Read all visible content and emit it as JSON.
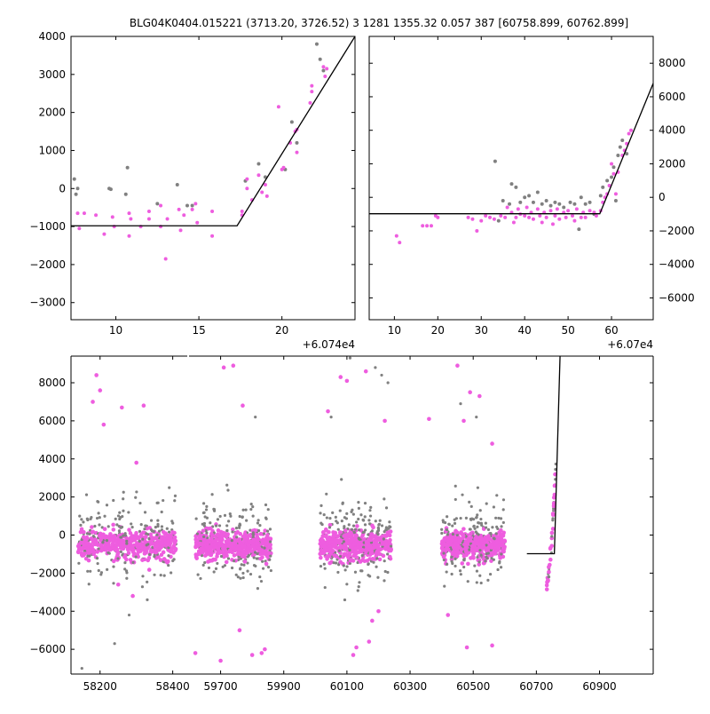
{
  "figure": {
    "title": "BLG04K0404.015221 (3713.20, 3726.52)   3 1281 1355.32 0.057 387 [60758.899, 60762.899]"
  },
  "colors": {
    "pink": "#ee5ddf",
    "grey": "#808080",
    "model": "#000000",
    "axes": "#000000",
    "background": "#ffffff"
  },
  "chart_data": [
    {
      "id": "zoom-left",
      "type": "scatter",
      "xlim": [
        7.3,
        24.4
      ],
      "ylim": [
        -3450,
        4000
      ],
      "xticks": [
        10,
        15,
        20
      ],
      "yticks": [
        -3000,
        -2000,
        -1000,
        0,
        1000,
        2000,
        3000,
        4000
      ],
      "y_axis_side": "left",
      "offset_text": "+6.074e4",
      "grid": false,
      "series": [
        {
          "color": "grey",
          "points": [
            [
              7.5,
              250
            ],
            [
              7.6,
              -150
            ],
            [
              7.7,
              0
            ],
            [
              9.6,
              0
            ],
            [
              9.7,
              -20
            ],
            [
              10.6,
              -150
            ],
            [
              10.7,
              550
            ],
            [
              12.5,
              -400
            ],
            [
              13.7,
              100
            ],
            [
              14.3,
              -450
            ],
            [
              14.6,
              -450
            ],
            [
              17.8,
              200
            ],
            [
              18.6,
              650
            ],
            [
              19.0,
              300
            ],
            [
              20.2,
              500
            ],
            [
              20.6,
              1750
            ],
            [
              20.9,
              1200
            ],
            [
              22.1,
              3800
            ],
            [
              22.3,
              3400
            ],
            [
              22.5,
              3100
            ]
          ]
        },
        {
          "color": "pink",
          "points": [
            [
              7.7,
              -650
            ],
            [
              7.8,
              -1050
            ],
            [
              8.1,
              -650
            ],
            [
              8.8,
              -700
            ],
            [
              9.3,
              -1200
            ],
            [
              9.8,
              -750
            ],
            [
              9.9,
              -1000
            ],
            [
              10.8,
              -1250
            ],
            [
              10.8,
              -650
            ],
            [
              10.9,
              -800
            ],
            [
              11.5,
              -1000
            ],
            [
              12.0,
              -600
            ],
            [
              12.0,
              -800
            ],
            [
              12.7,
              -450
            ],
            [
              12.7,
              -1000
            ],
            [
              13.1,
              -800
            ],
            [
              13.0,
              -1850
            ],
            [
              13.8,
              -550
            ],
            [
              13.9,
              -1100
            ],
            [
              14.1,
              -700
            ],
            [
              14.6,
              -550
            ],
            [
              14.8,
              -400
            ],
            [
              14.9,
              -900
            ],
            [
              15.8,
              -600
            ],
            [
              15.8,
              -1250
            ],
            [
              17.6,
              -700
            ],
            [
              17.6,
              -600
            ],
            [
              17.9,
              0
            ],
            [
              17.9,
              250
            ],
            [
              18.2,
              -300
            ],
            [
              18.6,
              350
            ],
            [
              18.8,
              -100
            ],
            [
              19.0,
              100
            ],
            [
              19.1,
              -200
            ],
            [
              19.8,
              2150
            ],
            [
              20.0,
              500
            ],
            [
              20.1,
              550
            ],
            [
              20.5,
              1200
            ],
            [
              20.8,
              1500
            ],
            [
              20.9,
              950
            ],
            [
              20.9,
              1550
            ],
            [
              21.7,
              2250
            ],
            [
              21.8,
              2700
            ],
            [
              21.8,
              2550
            ],
            [
              22.5,
              3200
            ],
            [
              22.6,
              2950
            ],
            [
              22.7,
              3150
            ]
          ]
        }
      ],
      "model": [
        [
          7.3,
          -980
        ],
        [
          17.3,
          -980
        ],
        [
          24.4,
          4000
        ]
      ]
    },
    {
      "id": "zoom-right",
      "type": "scatter",
      "xlim": [
        4.2,
        69.6
      ],
      "ylim": [
        -7300,
        9600
      ],
      "xticks": [
        10,
        20,
        30,
        40,
        50,
        60
      ],
      "yticks": [
        -6000,
        -4000,
        -2000,
        0,
        2000,
        4000,
        6000,
        8000
      ],
      "y_axis_side": "right",
      "offset_text": "+6.07e4",
      "grid": false,
      "series": [
        {
          "color": "grey",
          "points": [
            [
              33.2,
              2150
            ],
            [
              34.0,
              -1400
            ],
            [
              35.0,
              -200
            ],
            [
              36.5,
              -400
            ],
            [
              37.0,
              800
            ],
            [
              38.0,
              600
            ],
            [
              39.0,
              -300
            ],
            [
              40.0,
              0
            ],
            [
              41.0,
              100
            ],
            [
              42.0,
              -300
            ],
            [
              43.0,
              300
            ],
            [
              44.0,
              -400
            ],
            [
              45.0,
              -200
            ],
            [
              46.0,
              -500
            ],
            [
              47.0,
              -300
            ],
            [
              48.0,
              -400
            ],
            [
              49.0,
              -600
            ],
            [
              50.5,
              -300
            ],
            [
              51.5,
              -400
            ],
            [
              52.5,
              -1900
            ],
            [
              53.0,
              0
            ],
            [
              54.0,
              -400
            ],
            [
              55.0,
              -300
            ],
            [
              56.0,
              -1000
            ],
            [
              57.5,
              100
            ],
            [
              58.0,
              600
            ],
            [
              59.0,
              1000
            ],
            [
              60.0,
              1200
            ],
            [
              60.5,
              1800
            ],
            [
              61.0,
              -200
            ],
            [
              61.5,
              2500
            ],
            [
              62.0,
              3000
            ],
            [
              62.5,
              3400
            ],
            [
              63.5,
              2600
            ]
          ]
        },
        {
          "color": "pink",
          "points": [
            [
              10.5,
              -2300
            ],
            [
              11.2,
              -2700
            ],
            [
              16.5,
              -1700
            ],
            [
              17.5,
              -1700
            ],
            [
              18.5,
              -1700
            ],
            [
              19.5,
              -1100
            ],
            [
              20.0,
              -1200
            ],
            [
              27.0,
              -1200
            ],
            [
              28.0,
              -1300
            ],
            [
              29.0,
              -2000
            ],
            [
              30.0,
              -1400
            ],
            [
              31.0,
              -1100
            ],
            [
              32.0,
              -1200
            ],
            [
              33.0,
              -1300
            ],
            [
              34.5,
              -1100
            ],
            [
              35.5,
              -1200
            ],
            [
              36.0,
              -600
            ],
            [
              37.0,
              -900
            ],
            [
              37.5,
              -1500
            ],
            [
              38.0,
              -1200
            ],
            [
              38.5,
              -700
            ],
            [
              39.0,
              -1000
            ],
            [
              40.0,
              -1100
            ],
            [
              40.5,
              -600
            ],
            [
              41.0,
              -1200
            ],
            [
              41.5,
              -900
            ],
            [
              42.0,
              -1300
            ],
            [
              43.0,
              -700
            ],
            [
              43.5,
              -1100
            ],
            [
              44.0,
              -1500
            ],
            [
              44.5,
              -900
            ],
            [
              45.0,
              -1200
            ],
            [
              46.0,
              -800
            ],
            [
              46.5,
              -1600
            ],
            [
              47.0,
              -1100
            ],
            [
              47.5,
              -700
            ],
            [
              48.0,
              -1300
            ],
            [
              49.0,
              -900
            ],
            [
              49.5,
              -1200
            ],
            [
              50.0,
              -800
            ],
            [
              51.0,
              -1100
            ],
            [
              51.5,
              -1400
            ],
            [
              52.0,
              -700
            ],
            [
              53.0,
              -1200
            ],
            [
              53.5,
              -900
            ],
            [
              54.0,
              -1200
            ],
            [
              55.0,
              -800
            ],
            [
              56.0,
              -900
            ],
            [
              56.5,
              -1100
            ],
            [
              57.5,
              -800
            ],
            [
              58.0,
              -300
            ],
            [
              58.5,
              0
            ],
            [
              59.0,
              200
            ],
            [
              59.5,
              700
            ],
            [
              60.0,
              2000
            ],
            [
              60.5,
              1400
            ],
            [
              61.0,
              200
            ],
            [
              61.5,
              1500
            ],
            [
              62.5,
              2500
            ],
            [
              63.0,
              2800
            ],
            [
              63.5,
              3200
            ],
            [
              64.0,
              3800
            ],
            [
              64.5,
              4000
            ]
          ]
        }
      ],
      "model": [
        [
          4.2,
          -980
        ],
        [
          57.3,
          -980
        ],
        [
          69.6,
          6800
        ]
      ]
    },
    {
      "id": "full-lightcurve",
      "type": "scatter",
      "ylim": [
        -7300,
        9400
      ],
      "yticks": [
        -6000,
        -4000,
        -2000,
        0,
        2000,
        4000,
        6000,
        8000
      ],
      "y_axis_side": "left",
      "grid": false,
      "x_segments": [
        {
          "xlim": [
            58120,
            58440
          ],
          "xticks": [
            58200,
            58400
          ]
        },
        {
          "xlim": [
            59600,
            61070
          ],
          "xticks": [
            59700,
            59900,
            60100,
            60300,
            60500,
            60700,
            60900
          ]
        }
      ],
      "seasons": [
        {
          "segment": 0,
          "x_range": [
            58140,
            58410
          ]
        },
        {
          "segment": 1,
          "x_range": [
            59620,
            59860
          ]
        },
        {
          "segment": 1,
          "x_range": [
            60015,
            60240
          ]
        },
        {
          "segment": 1,
          "x_range": [
            60400,
            60600
          ]
        }
      ],
      "clusters": [
        {
          "segment": 1,
          "x_range": [
            60730,
            60762
          ],
          "y_range": [
            -2500,
            4000
          ]
        }
      ],
      "pink_outliers": [
        [
          58180,
          7000
        ],
        [
          58190,
          8400
        ],
        [
          58200,
          7600
        ],
        [
          58210,
          5800
        ],
        [
          58260,
          6700
        ],
        [
          58300,
          3800
        ],
        [
          58320,
          6800
        ],
        [
          58250,
          -2600
        ],
        [
          58290,
          -3200
        ],
        [
          59620,
          -6200
        ],
        [
          59700,
          -6600
        ],
        [
          59710,
          8800
        ],
        [
          59740,
          8900
        ],
        [
          59760,
          -5000
        ],
        [
          59770,
          6800
        ],
        [
          59800,
          -6300
        ],
        [
          59830,
          -6200
        ],
        [
          59840,
          -6000
        ],
        [
          60040,
          6500
        ],
        [
          60080,
          8300
        ],
        [
          60100,
          8100
        ],
        [
          60120,
          -6300
        ],
        [
          60130,
          -5900
        ],
        [
          60160,
          8600
        ],
        [
          60170,
          -5600
        ],
        [
          60180,
          -4500
        ],
        [
          60200,
          -4000
        ],
        [
          60220,
          6000
        ],
        [
          60360,
          6100
        ],
        [
          60420,
          -4200
        ],
        [
          60450,
          8900
        ],
        [
          60470,
          6000
        ],
        [
          60480,
          -5900
        ],
        [
          60490,
          7500
        ],
        [
          60520,
          7300
        ],
        [
          60560,
          -5800
        ],
        [
          60560,
          4800
        ]
      ],
      "grey_outliers": [
        [
          58240,
          -5700
        ],
        [
          58150,
          -7000
        ],
        [
          58330,
          -3400
        ],
        [
          58280,
          -4200
        ],
        [
          59810,
          6200
        ],
        [
          60050,
          6200
        ],
        [
          60190,
          8800
        ],
        [
          60210,
          8400
        ],
        [
          60230,
          8000
        ],
        [
          60110,
          9300
        ],
        [
          60460,
          6900
        ],
        [
          60510,
          6200
        ]
      ],
      "model": [
        [
          60670,
          -980
        ],
        [
          60757,
          -980
        ],
        [
          60775,
          9400
        ]
      ]
    }
  ]
}
